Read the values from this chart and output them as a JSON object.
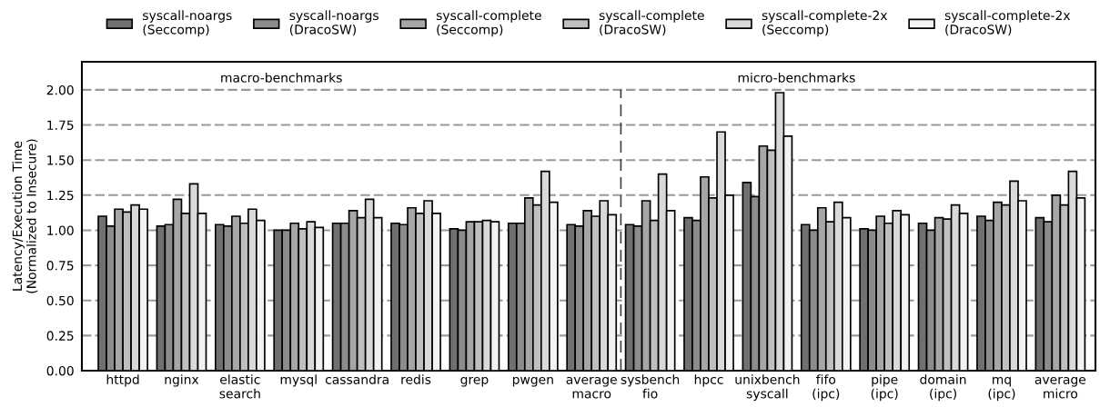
{
  "chart_data": {
    "type": "bar",
    "ylabel": "Latency/Execution Time\n(Normalized to Insecure)",
    "categories": [
      "httpd",
      "nginx",
      "elastic\nsearch",
      "mysql",
      "cassandra",
      "redis",
      "grep",
      "pwgen",
      "average\nmacro",
      "sysbench\nfio",
      "hpcc",
      "unixbench\nsyscall",
      "fifo\n(ipc)",
      "pipe\n(ipc)",
      "domain\n(ipc)",
      "mq\n(ipc)",
      "average\nmicro"
    ],
    "series": [
      {
        "name": "syscall-noargs\n(Seccomp)",
        "color": "#707070",
        "values": [
          1.1,
          1.03,
          1.04,
          1.0,
          1.05,
          1.05,
          1.01,
          1.05,
          1.04,
          1.04,
          1.09,
          1.34,
          1.04,
          1.01,
          1.05,
          1.1,
          1.09
        ]
      },
      {
        "name": "syscall-noargs\n(DracoSW)",
        "color": "#8c8c8c",
        "values": [
          1.03,
          1.04,
          1.03,
          1.0,
          1.05,
          1.04,
          1.0,
          1.05,
          1.03,
          1.03,
          1.07,
          1.24,
          1.0,
          1.0,
          1.0,
          1.07,
          1.06
        ]
      },
      {
        "name": "syscall-complete\n(Seccomp)",
        "color": "#a6a6a6",
        "values": [
          1.15,
          1.22,
          1.1,
          1.05,
          1.14,
          1.16,
          1.06,
          1.23,
          1.14,
          1.21,
          1.38,
          1.6,
          1.16,
          1.1,
          1.09,
          1.2,
          1.25
        ]
      },
      {
        "name": "syscall-complete\n(DracoSW)",
        "color": "#bfbfbf",
        "values": [
          1.13,
          1.12,
          1.05,
          1.01,
          1.09,
          1.12,
          1.06,
          1.18,
          1.1,
          1.07,
          1.23,
          1.57,
          1.06,
          1.05,
          1.08,
          1.18,
          1.18
        ]
      },
      {
        "name": "syscall-complete-2x\n(Seccomp)",
        "color": "#d9d9d9",
        "values": [
          1.18,
          1.33,
          1.15,
          1.06,
          1.22,
          1.21,
          1.07,
          1.42,
          1.21,
          1.4,
          1.7,
          1.98,
          1.2,
          1.14,
          1.18,
          1.35,
          1.42
        ]
      },
      {
        "name": "syscall-complete-2x\n(DracoSW)",
        "color": "#f2f2f2",
        "values": [
          1.15,
          1.12,
          1.07,
          1.02,
          1.09,
          1.12,
          1.06,
          1.2,
          1.11,
          1.14,
          1.25,
          1.67,
          1.09,
          1.11,
          1.12,
          1.21,
          1.23
        ]
      }
    ],
    "ylim": [
      0,
      2.2
    ],
    "yticks": [
      {
        "value": 0,
        "label": "0.00"
      },
      {
        "value": 0.25,
        "label": "0.25"
      },
      {
        "value": 0.5,
        "label": "0.50"
      },
      {
        "value": 0.75,
        "label": "0.75"
      },
      {
        "value": 1,
        "label": "1.00"
      },
      {
        "value": 1.25,
        "label": "1.25"
      },
      {
        "value": 1.5,
        "label": "1.50"
      },
      {
        "value": 1.75,
        "label": "1.75"
      },
      {
        "value": 2,
        "label": "2.00"
      }
    ],
    "grid": "y",
    "legend": "top",
    "annotations": [
      "macro-benchmarks",
      "micro-benchmarks"
    ]
  }
}
